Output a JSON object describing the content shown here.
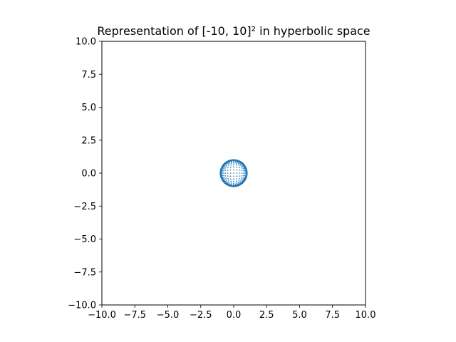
{
  "chart_data": {
    "type": "scatter",
    "title": "Representation of [-10, 10]² in hyperbolic space",
    "xlabel": "",
    "ylabel": "",
    "xlim": [
      -10,
      10
    ],
    "ylim": [
      -10,
      10
    ],
    "xticks": [
      "−10.0",
      "−7.5",
      "−5.0",
      "−2.5",
      "0.0",
      "2.5",
      "5.0",
      "7.5",
      "10.0"
    ],
    "yticks": [
      "10.0",
      "7.5",
      "5.0",
      "2.5",
      "0.0",
      "−2.5",
      "−5.0",
      "−7.5",
      "−10.0"
    ],
    "grid": false,
    "series_color": "#1f77b4",
    "disk_center": [
      0,
      0
    ],
    "disk_radius": 1,
    "mapping": "points of a uniform grid over [-10, 10]² mapped into the unit Poincaré disk"
  }
}
